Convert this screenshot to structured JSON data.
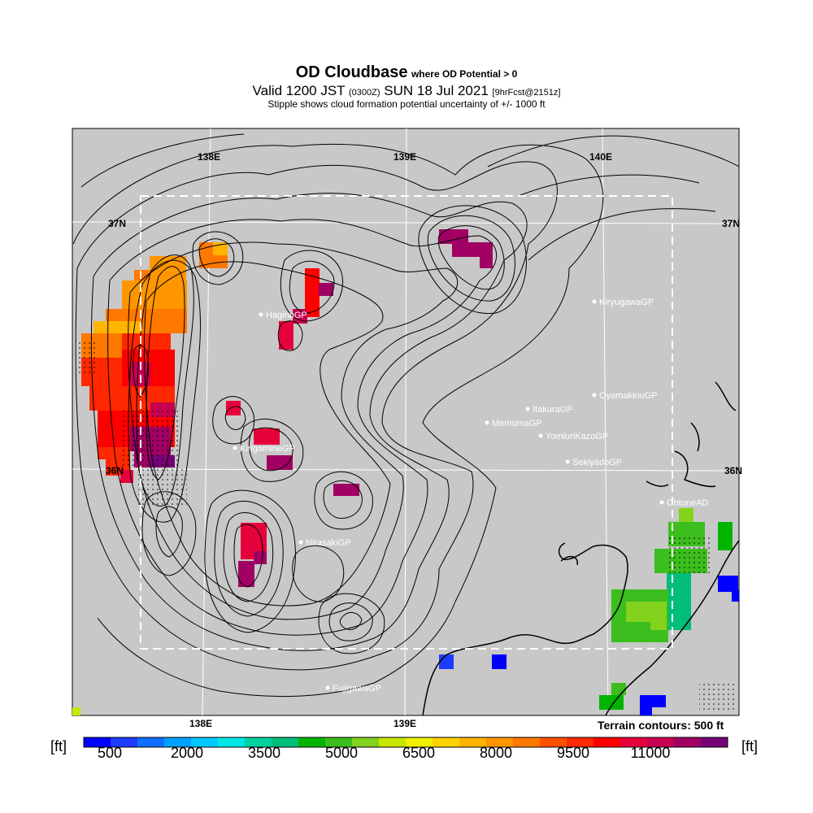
{
  "title": {
    "main": "OD Cloudbase",
    "main_suffix": "where OD Potential > 0",
    "valid_prefix": "Valid 1200 JST",
    "zulu": "(0300Z)",
    "valid_date": "SUN 18 Jul 2021",
    "forecast": "[9hrFcst@2151z]",
    "stipple_note": "Stipple shows cloud formation potential uncertainty of +/- 1000 ft"
  },
  "axes": {
    "lon_labels_top": [
      "138E",
      "139E",
      "140E"
    ],
    "lon_labels_bottom": [
      "138E",
      "139E"
    ],
    "lat_labels_left": [
      "37N",
      "36N"
    ],
    "lat_labels_right": [
      "37N",
      "36N"
    ]
  },
  "sites": [
    "KiryugawaGP",
    "HaginoGP",
    "OyamakinuGP",
    "ItakuraGP",
    "MemumaGP",
    "YomiuriKazoGP",
    "KirigamineGP",
    "SekiyadoGP",
    "OhtoneAD",
    "NirasakiGP",
    "FujigawaGP"
  ],
  "terrain_note": "Terrain contours: 500 ft",
  "colorbar": {
    "unit": "[ft]",
    "tick_labels": [
      "500",
      "2000",
      "3500",
      "5000",
      "6500",
      "8000",
      "9500",
      "11000"
    ],
    "colors": [
      "#0000ff",
      "#1e3cff",
      "#0f6eff",
      "#00a0ff",
      "#00c8ff",
      "#00e6e6",
      "#00d2a0",
      "#00be78",
      "#00b400",
      "#3cbe1e",
      "#82d21e",
      "#c8e600",
      "#f0f000",
      "#ffd200",
      "#ffb400",
      "#ff9600",
      "#ff7800",
      "#ff5000",
      "#ff2800",
      "#ff0000",
      "#e6003c",
      "#c80050",
      "#a00064",
      "#780078"
    ]
  },
  "colors": {
    "background": "#c8c8c8",
    "contour": "#000000",
    "site_text": "#ffffff"
  }
}
